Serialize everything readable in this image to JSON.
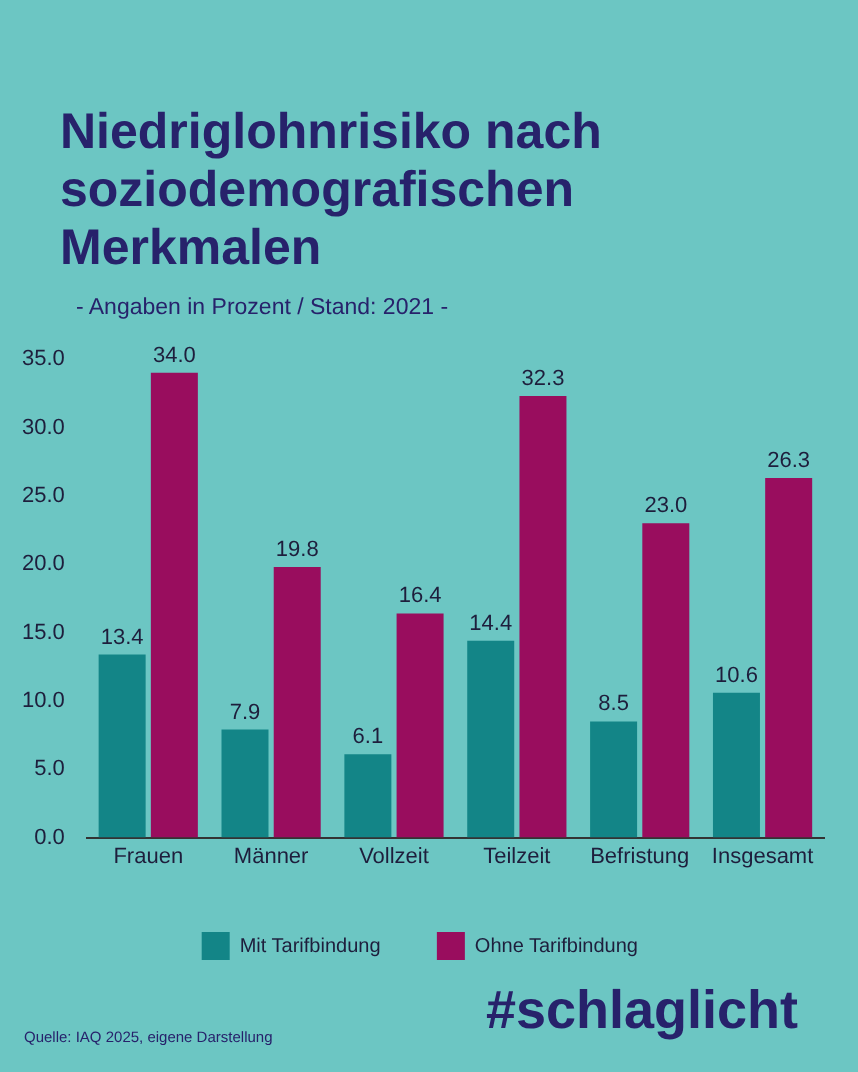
{
  "chart_data": {
    "type": "bar",
    "title": "Niedriglohnrisiko nach soziodemografischen Merkmalen",
    "subtitle": "- Angaben in Prozent  / Stand: 2021 -",
    "categories": [
      "Frauen",
      "Männer",
      "Vollzeit",
      "Teilzeit",
      "Befristung",
      "Insgesamt"
    ],
    "series": [
      {
        "name": "Mit Tarifbindung",
        "color": "#138587",
        "values": [
          13.4,
          7.9,
          6.1,
          14.4,
          8.5,
          10.6
        ],
        "value_labels": [
          "13.4",
          "7.9",
          "6.1",
          "14.4",
          "8.5",
          "10.6"
        ]
      },
      {
        "name": "Ohne Tarifbindung",
        "color": "#990d5e",
        "values": [
          34.0,
          19.8,
          16.4,
          32.3,
          23.0,
          26.3
        ],
        "value_labels": [
          "34.0",
          "19.8",
          "16.4",
          "32.3",
          "23.0",
          "26.3"
        ]
      }
    ],
    "ylim": [
      0,
      35
    ],
    "yticks": [
      {
        "value": 0,
        "label": "0.0"
      },
      {
        "value": 5,
        "label": "5.0"
      },
      {
        "value": 10,
        "label": "10.0"
      },
      {
        "value": 15,
        "label": "15.0"
      },
      {
        "value": 20,
        "label": "20.0"
      },
      {
        "value": 25,
        "label": "25.0"
      },
      {
        "value": 30,
        "label": "30.0"
      },
      {
        "value": 35,
        "label": "35.0"
      }
    ],
    "grid": false,
    "legend": "bottom",
    "annotations": [
      "Quelle: IAQ 2025, eigene Darstellung",
      "#schlaglicht"
    ]
  }
}
